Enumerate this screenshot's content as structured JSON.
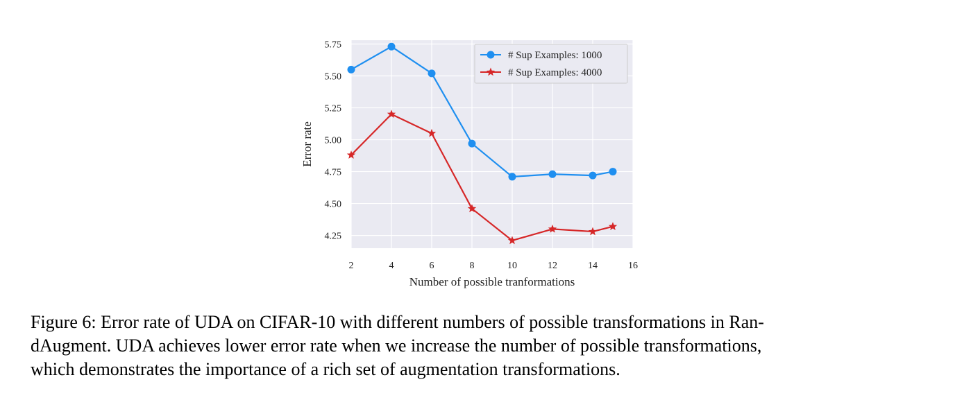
{
  "chart_data": {
    "type": "line",
    "title": "",
    "xlabel": "Number of possible tranformations",
    "ylabel": "Error rate",
    "xlim": [
      2,
      16
    ],
    "ylim": [
      4.15,
      5.78
    ],
    "x_ticks": [
      2,
      4,
      6,
      8,
      10,
      12,
      14,
      16
    ],
    "y_ticks": [
      4.25,
      4.5,
      4.75,
      5.0,
      5.25,
      5.5,
      5.75
    ],
    "x_tick_labels": [
      "2",
      "4",
      "6",
      "8",
      "10",
      "12",
      "14",
      "16"
    ],
    "y_tick_labels": [
      "4.25",
      "4.50",
      "4.75",
      "5.00",
      "5.25",
      "5.50",
      "5.75"
    ],
    "grid": true,
    "legend_position": "top-right",
    "x": [
      2,
      4,
      6,
      8,
      10,
      12,
      14,
      15
    ],
    "series": [
      {
        "name": "# Sup Examples: 1000",
        "marker": "circle",
        "color": "#1f8ff0",
        "values": [
          5.55,
          5.73,
          5.52,
          4.97,
          4.71,
          4.73,
          4.72,
          4.75
        ]
      },
      {
        "name": "# Sup Examples: 4000",
        "marker": "star",
        "color": "#d62728",
        "values": [
          4.88,
          5.2,
          5.05,
          4.46,
          4.21,
          4.3,
          4.28,
          4.32
        ]
      }
    ]
  },
  "caption": {
    "line1": "Figure 6: Error rate of UDA on CIFAR-10 with different numbers of possible transformations in Ran-",
    "line2": "dAugment. UDA achieves lower error rate when we increase the number of possible transformations,",
    "line3": "which demonstrates the importance of a rich set of augmentation transformations."
  }
}
